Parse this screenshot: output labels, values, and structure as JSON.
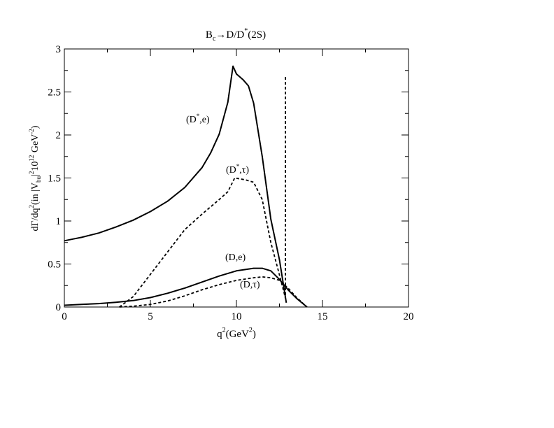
{
  "chart_data": {
    "type": "line",
    "title": {
      "base": "B",
      "sub": "c",
      "mid": "→D/D",
      "sup": "*",
      "tail": "(2S)"
    },
    "xlabel": {
      "base": "q",
      "sup": "2",
      "mid": "(GeV",
      "sup2": "2",
      "tail": ")"
    },
    "ylabel": "dΓ/dq²(in |V_bu|² 10¹² GeV⁻²)",
    "ylabel_parts": {
      "a": "dΓ/dq",
      "b": "2",
      "c": "(in |V",
      "d": "bu",
      "e": "|",
      "f": "2",
      "g": "10",
      "h": "12",
      "i": " GeV",
      "j": "-2",
      "k": ")"
    },
    "xlim": [
      0,
      20
    ],
    "ylim": [
      0,
      3
    ],
    "xticks": [
      "0",
      "5",
      "10",
      "15",
      "20"
    ],
    "yticks": [
      "0",
      "0.5",
      "1",
      "1.5",
      "2",
      "2.5",
      "3"
    ],
    "grid": false,
    "series": [
      {
        "name": "(D*,e)",
        "style": "solid",
        "x": [
          0,
          0.5,
          1,
          2,
          3,
          4,
          5,
          6,
          7,
          8,
          8.5,
          9,
          9.5,
          9.8,
          10,
          10.4,
          10.7,
          11,
          11.5,
          12,
          12.5,
          12.9
        ],
        "y": [
          0.77,
          0.79,
          0.81,
          0.86,
          0.93,
          1.01,
          1.11,
          1.23,
          1.39,
          1.62,
          1.79,
          2.01,
          2.38,
          2.8,
          2.71,
          2.64,
          2.57,
          2.37,
          1.75,
          1.02,
          0.55,
          0.05
        ]
      },
      {
        "name": "(D*,τ)",
        "style": "dashed",
        "x": [
          3.2,
          4,
          5,
          6,
          7,
          8,
          9,
          9.5,
          9.9,
          10.5,
          11,
          11.5,
          12,
          12.4,
          12.7,
          12.85,
          12.85
        ],
        "y": [
          0,
          0.12,
          0.38,
          0.64,
          0.9,
          1.08,
          1.25,
          1.34,
          1.5,
          1.48,
          1.45,
          1.25,
          0.75,
          0.45,
          0.22,
          0.1,
          2.68
        ]
      },
      {
        "name": "(D,e)",
        "style": "solid",
        "x": [
          0,
          1,
          2,
          3,
          4,
          5,
          6,
          7,
          8,
          9,
          10,
          11,
          11.5,
          12,
          12.5,
          13,
          13.5,
          14.1
        ],
        "y": [
          0.02,
          0.03,
          0.04,
          0.055,
          0.075,
          0.11,
          0.16,
          0.22,
          0.29,
          0.36,
          0.42,
          0.45,
          0.45,
          0.42,
          0.32,
          0.2,
          0.1,
          0
        ]
      },
      {
        "name": "(D,τ)",
        "style": "dashed",
        "x": [
          3.2,
          4,
          5,
          6,
          7,
          8,
          9,
          10,
          11,
          11.5,
          12,
          12.5,
          13,
          13.5,
          14.1
        ],
        "y": [
          0,
          0.01,
          0.03,
          0.07,
          0.13,
          0.2,
          0.26,
          0.31,
          0.34,
          0.35,
          0.34,
          0.31,
          0.22,
          0.11,
          0
        ]
      }
    ],
    "annotations": {
      "dstar_e": {
        "a": "(D",
        "sup": "*",
        "b": ",e)"
      },
      "dstar_tau": {
        "a": "(D",
        "sup": "*",
        "b": ",τ)"
      },
      "d_e": "(D,e)",
      "d_tau": "(D,τ)"
    }
  }
}
